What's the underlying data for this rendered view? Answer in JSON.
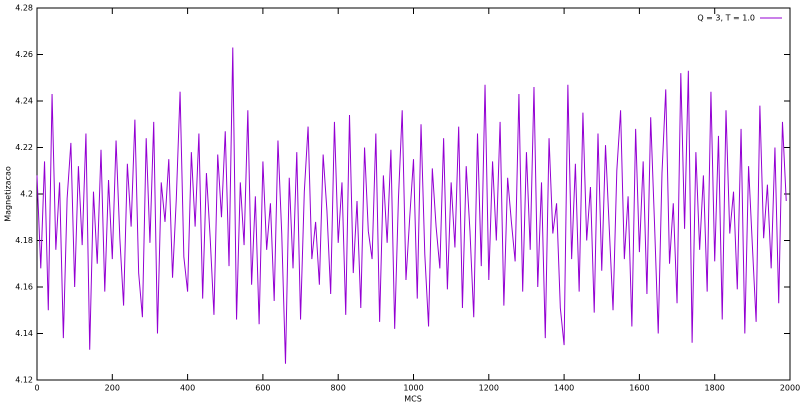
{
  "chart_data": {
    "type": "line",
    "xlabel": "MCS",
    "ylabel": "Magnetizacao",
    "xlim": [
      0,
      2000
    ],
    "xticks": [
      0,
      200,
      400,
      600,
      800,
      1000,
      1200,
      1400,
      1600,
      1800,
      2000
    ],
    "ylim": [
      4.12,
      4.28
    ],
    "yticks": [
      4.12,
      4.14,
      4.16,
      4.18,
      4.2,
      4.22,
      4.24,
      4.26,
      4.28
    ],
    "grid": false,
    "legend": "top-right",
    "x": [
      0,
      10,
      20,
      30,
      40,
      50,
      60,
      70,
      80,
      90,
      100,
      110,
      120,
      130,
      140,
      150,
      160,
      170,
      180,
      190,
      200,
      210,
      220,
      230,
      240,
      250,
      260,
      270,
      280,
      290,
      300,
      310,
      320,
      330,
      340,
      350,
      360,
      370,
      380,
      390,
      400,
      410,
      420,
      430,
      440,
      450,
      460,
      470,
      480,
      490,
      500,
      510,
      520,
      530,
      540,
      550,
      560,
      570,
      580,
      590,
      600,
      610,
      620,
      630,
      640,
      650,
      660,
      670,
      680,
      690,
      700,
      710,
      720,
      730,
      740,
      750,
      760,
      770,
      780,
      790,
      800,
      810,
      820,
      830,
      840,
      850,
      860,
      870,
      880,
      890,
      900,
      910,
      920,
      930,
      940,
      950,
      960,
      970,
      980,
      990,
      1000,
      1010,
      1020,
      1030,
      1040,
      1050,
      1060,
      1070,
      1080,
      1090,
      1100,
      1110,
      1120,
      1130,
      1140,
      1150,
      1160,
      1170,
      1180,
      1190,
      1200,
      1210,
      1220,
      1230,
      1240,
      1250,
      1260,
      1270,
      1280,
      1290,
      1300,
      1310,
      1320,
      1330,
      1340,
      1350,
      1360,
      1370,
      1380,
      1390,
      1400,
      1410,
      1420,
      1430,
      1440,
      1450,
      1460,
      1470,
      1480,
      1490,
      1500,
      1510,
      1520,
      1530,
      1540,
      1550,
      1560,
      1570,
      1580,
      1590,
      1600,
      1610,
      1620,
      1630,
      1640,
      1650,
      1660,
      1670,
      1680,
      1690,
      1700,
      1710,
      1720,
      1730,
      1740,
      1750,
      1760,
      1770,
      1780,
      1790,
      1800,
      1810,
      1820,
      1830,
      1840,
      1850,
      1860,
      1870,
      1880,
      1890,
      1900,
      1910,
      1920,
      1930,
      1940,
      1950,
      1960,
      1970,
      1980,
      1990
    ],
    "series": [
      {
        "name": "Q = 3, T = 1.0",
        "color": "#9400d3",
        "values": [
          4.208,
          4.168,
          4.214,
          4.15,
          4.243,
          4.176,
          4.205,
          4.138,
          4.198,
          4.222,
          4.16,
          4.212,
          4.178,
          4.226,
          4.133,
          4.201,
          4.17,
          4.219,
          4.158,
          4.206,
          4.172,
          4.223,
          4.181,
          4.152,
          4.213,
          4.186,
          4.232,
          4.166,
          4.147,
          4.224,
          4.179,
          4.231,
          4.14,
          4.205,
          4.188,
          4.215,
          4.164,
          4.198,
          4.244,
          4.173,
          4.158,
          4.218,
          4.186,
          4.226,
          4.155,
          4.209,
          4.181,
          4.148,
          4.217,
          4.19,
          4.227,
          4.169,
          4.263,
          4.146,
          4.205,
          4.178,
          4.236,
          4.161,
          4.199,
          4.144,
          4.214,
          4.176,
          4.196,
          4.154,
          4.223,
          4.183,
          4.127,
          4.207,
          4.168,
          4.218,
          4.146,
          4.201,
          4.229,
          4.172,
          4.188,
          4.161,
          4.217,
          4.193,
          4.157,
          4.231,
          4.179,
          4.205,
          4.148,
          4.234,
          4.166,
          4.197,
          4.151,
          4.22,
          4.184,
          4.172,
          4.226,
          4.145,
          4.208,
          4.179,
          4.219,
          4.142,
          4.198,
          4.236,
          4.163,
          4.19,
          4.215,
          4.155,
          4.23,
          4.174,
          4.143,
          4.211,
          4.186,
          4.168,
          4.224,
          4.159,
          4.205,
          4.177,
          4.229,
          4.151,
          4.212,
          4.184,
          4.147,
          4.226,
          4.169,
          4.247,
          4.163,
          4.214,
          4.18,
          4.231,
          4.152,
          4.207,
          4.188,
          4.171,
          4.243,
          4.158,
          4.218,
          4.176,
          4.246,
          4.16,
          4.205,
          4.138,
          4.224,
          4.183,
          4.196,
          4.151,
          4.135,
          4.247,
          4.172,
          4.213,
          4.158,
          4.235,
          4.18,
          4.203,
          4.149,
          4.226,
          4.167,
          4.221,
          4.185,
          4.15,
          4.21,
          4.236,
          4.172,
          4.199,
          4.143,
          4.228,
          4.175,
          4.214,
          4.157,
          4.233,
          4.188,
          4.14,
          4.209,
          4.245,
          4.17,
          4.196,
          4.153,
          4.252,
          4.185,
          4.253,
          4.136,
          4.218,
          4.176,
          4.208,
          4.158,
          4.244,
          4.171,
          4.225,
          4.146,
          4.236,
          4.183,
          4.201,
          4.159,
          4.228,
          4.14,
          4.212,
          4.178,
          4.145,
          4.238,
          4.181,
          4.204,
          4.168,
          4.22,
          4.153,
          4.231,
          4.197
        ]
      }
    ]
  }
}
